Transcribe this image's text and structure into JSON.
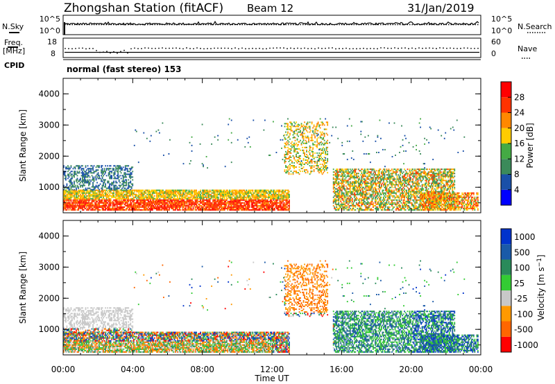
{
  "header": {
    "station": "Zhongshan Station (fitACF)",
    "beam": "Beam 12",
    "date": "31/Jan/2019"
  },
  "top_panel": {
    "left_label": "N.Sky",
    "right_label": "N.Search",
    "left_ticks": [
      "10^5",
      "10^0"
    ],
    "right_ticks": [
      "10^5",
      "10^0"
    ]
  },
  "freq_panel": {
    "left_label_1": "Freq.",
    "left_label_2": "[MHz]",
    "right_label": "Nave",
    "left_ticks": [
      "18",
      "8"
    ],
    "right_ticks": [
      "60",
      "0"
    ]
  },
  "cpid": {
    "label": "CPID",
    "text": "normal (fast stereo) 153"
  },
  "colors": {
    "power": [
      "#0000ff",
      "#1a50a8",
      "#3b8a5a",
      "#44aa44",
      "#ffcc00",
      "#ff8800",
      "#ff3300",
      "#ff0000"
    ],
    "velocity": [
      "#ff0000",
      "#ff6600",
      "#ff9900",
      "#c8c8c8",
      "#33cc33",
      "#2a8a5a",
      "#1a5aa8",
      "#0033cc"
    ]
  },
  "chart_data": [
    {
      "type": "heatmap",
      "xlabel": "",
      "ylabel": "Slant Range [km]",
      "xlim": [
        0,
        24
      ],
      "ylim": [
        180,
        4500
      ],
      "yticks": [
        "1000",
        "2000",
        "3000",
        "4000"
      ],
      "colorbar_label": "Power [dB]",
      "colorbar_ticks": [
        "4",
        "8",
        "12",
        "16",
        "20",
        "24",
        "28"
      ],
      "clim": [
        0,
        32
      ]
    },
    {
      "type": "heatmap",
      "xlabel": "Time UT",
      "ylabel": "Slant Range [km]",
      "xlim": [
        0,
        24
      ],
      "ylim": [
        180,
        4500
      ],
      "xticks": [
        "00:00",
        "04:00",
        "08:00",
        "12:00",
        "16:00",
        "20:00",
        "00:00"
      ],
      "yticks": [
        "1000",
        "2000",
        "3000",
        "4000"
      ],
      "colorbar_label": "Velocity [m s^-1]",
      "colorbar_ticks": [
        "1000",
        "500",
        "100",
        "25",
        "-25",
        "-100",
        "-500",
        "-1000"
      ]
    }
  ]
}
